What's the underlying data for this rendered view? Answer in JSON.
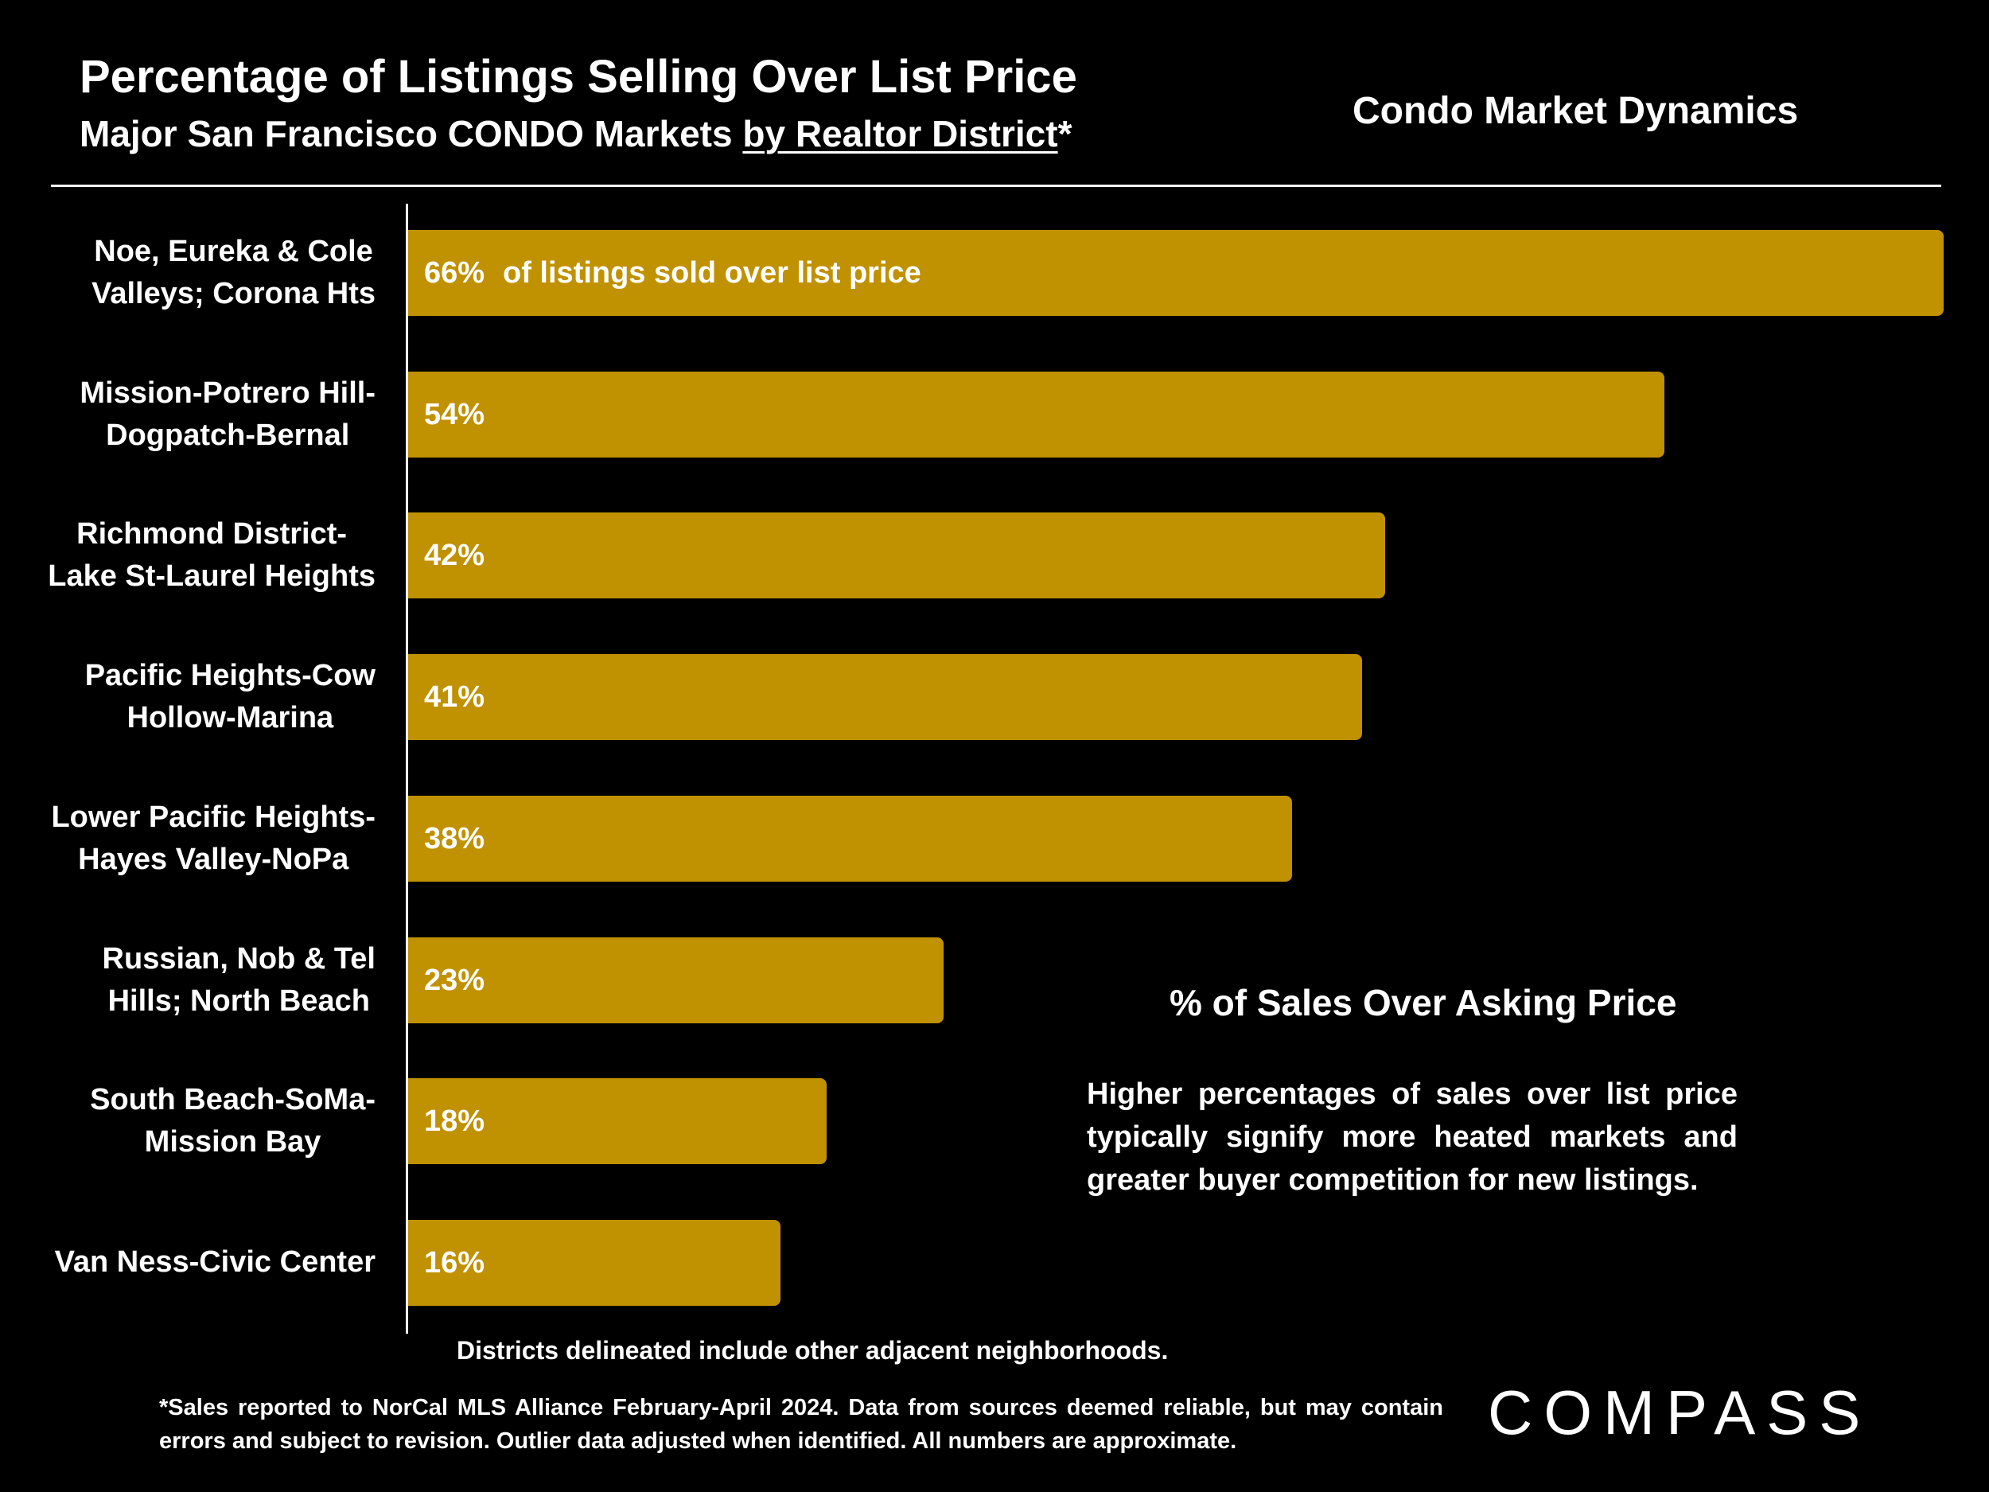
{
  "header": {
    "title": "Percentage of Listings Selling Over List Price",
    "subtitle_prefix": "Major San Francisco CONDO Markets ",
    "subtitle_link": "by Realtor District",
    "subtitle_suffix": "*",
    "section_title": "Condo Market Dynamics"
  },
  "chart_data": {
    "type": "bar",
    "orientation": "horizontal",
    "categories": [
      [
        "Noe, Eureka & Cole",
        "Valleys; Corona Hts"
      ],
      [
        "Mission-Potrero Hill-",
        "Dogpatch-Bernal"
      ],
      [
        "Richmond District-",
        "Lake St-Laurel Heights"
      ],
      [
        "Pacific Heights-Cow",
        "Hollow-Marina"
      ],
      [
        "Lower Pacific Heights-",
        "Hayes Valley-NoPa"
      ],
      [
        "Russian, Nob & Tel",
        "Hills; North Beach"
      ],
      [
        "South Beach-SoMa-",
        "Mission Bay"
      ],
      [
        "Van Ness-Civic Center"
      ]
    ],
    "values": [
      66,
      54,
      42,
      41,
      38,
      23,
      18,
      16
    ],
    "value_labels": [
      "66%",
      "54%",
      "42%",
      "41%",
      "38%",
      "23%",
      "18%",
      "16%"
    ],
    "first_bar_annotation": "of listings sold over list price",
    "bar_color": "#C09100",
    "xlim": [
      0,
      66
    ],
    "grid": false
  },
  "annotation": {
    "heading": "% of Sales Over Asking Price",
    "text": "Higher percentages of sales over list price typically signify more heated markets and greater buyer competition for new listings."
  },
  "footer": {
    "districts_note": "Districts delineated include other adjacent neighborhoods.",
    "source_note": "*Sales reported to NorCal MLS Alliance February-April 2024. Data from sources deemed reliable, but may contain errors and subject to revision. Outlier data adjusted when identified. All numbers are approximate.",
    "logo_text": "COMPASS"
  }
}
